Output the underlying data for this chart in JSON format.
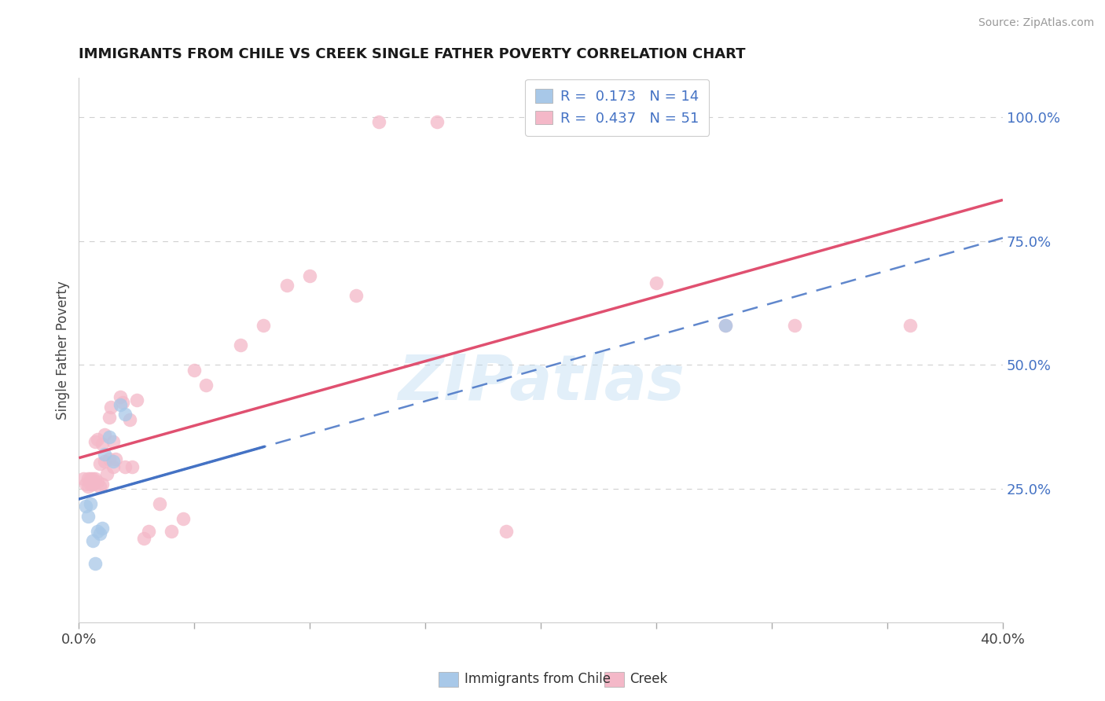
{
  "title": "IMMIGRANTS FROM CHILE VS CREEK SINGLE FATHER POVERTY CORRELATION CHART",
  "source": "Source: ZipAtlas.com",
  "ylabel": "Single Father Poverty",
  "xlim": [
    0.0,
    0.4
  ],
  "ylim": [
    -0.02,
    1.08
  ],
  "ytick_labels_right": [
    "100.0%",
    "75.0%",
    "50.0%",
    "25.0%"
  ],
  "ytick_positions_right": [
    1.0,
    0.75,
    0.5,
    0.25
  ],
  "chile_R": 0.173,
  "chile_N": 14,
  "creek_R": 0.437,
  "creek_N": 51,
  "chile_color": "#a8c8e8",
  "creek_color": "#f4b8c8",
  "chile_line_color": "#4472c4",
  "creek_line_color": "#e05070",
  "background_color": "#ffffff",
  "grid_color": "#d0d0d0",
  "watermark": "ZIPatlas",
  "chile_x": [
    0.003,
    0.004,
    0.005,
    0.006,
    0.007,
    0.008,
    0.009,
    0.01,
    0.011,
    0.013,
    0.015,
    0.018,
    0.02,
    0.28
  ],
  "chile_y": [
    0.215,
    0.195,
    0.22,
    0.145,
    0.1,
    0.165,
    0.16,
    0.17,
    0.32,
    0.355,
    0.305,
    0.42,
    0.4,
    0.58
  ],
  "creek_x": [
    0.002,
    0.003,
    0.004,
    0.004,
    0.005,
    0.005,
    0.006,
    0.006,
    0.006,
    0.007,
    0.007,
    0.008,
    0.008,
    0.009,
    0.009,
    0.01,
    0.01,
    0.011,
    0.011,
    0.012,
    0.013,
    0.013,
    0.014,
    0.015,
    0.015,
    0.016,
    0.018,
    0.019,
    0.02,
    0.022,
    0.023,
    0.025,
    0.028,
    0.03,
    0.035,
    0.04,
    0.045,
    0.05,
    0.055,
    0.07,
    0.08,
    0.09,
    0.1,
    0.12,
    0.13,
    0.155,
    0.185,
    0.25,
    0.28,
    0.31,
    0.36
  ],
  "creek_y": [
    0.27,
    0.26,
    0.255,
    0.27,
    0.26,
    0.27,
    0.26,
    0.27,
    0.26,
    0.27,
    0.345,
    0.265,
    0.35,
    0.255,
    0.3,
    0.26,
    0.34,
    0.305,
    0.36,
    0.28,
    0.31,
    0.395,
    0.415,
    0.295,
    0.345,
    0.31,
    0.435,
    0.425,
    0.295,
    0.39,
    0.295,
    0.43,
    0.15,
    0.165,
    0.22,
    0.165,
    0.19,
    0.49,
    0.46,
    0.54,
    0.58,
    0.66,
    0.68,
    0.64,
    0.99,
    0.99,
    0.165,
    0.665,
    0.58,
    0.58,
    0.58
  ],
  "legend_r_chile": "R =  0.173   N = 14",
  "legend_r_creek": "R =  0.437   N = 51",
  "legend_label_chile": "Immigrants from Chile",
  "legend_label_creek": "Creek"
}
